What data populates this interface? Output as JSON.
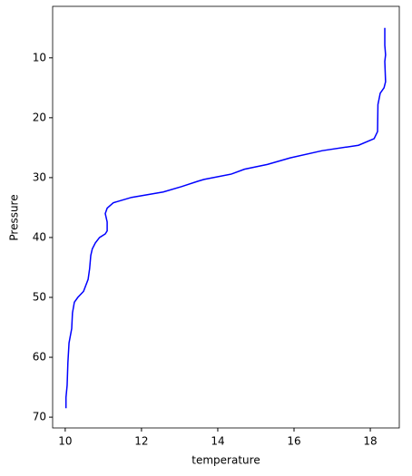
{
  "chart_data": {
    "type": "line",
    "x_label": "temperature",
    "y_label": "Pressure",
    "y_inverted": true,
    "color": "#0000ff",
    "x": [
      18.38,
      18.38,
      18.4,
      18.38,
      18.4,
      18.36,
      18.26,
      18.2,
      18.19,
      18.1,
      17.69,
      16.74,
      15.9,
      15.3,
      14.7,
      14.36,
      13.64,
      13.48,
      13.05,
      12.57,
      11.74,
      11.26,
      11.1,
      11.05,
      11.1,
      11.1,
      11.05,
      10.9,
      10.79,
      10.71,
      10.67,
      10.64,
      10.6,
      10.48,
      10.33,
      10.24,
      10.19,
      10.17,
      10.1,
      10.07,
      10.05,
      10.02,
      10.02
    ],
    "values": [
      5,
      7.9,
      9.5,
      10.6,
      14,
      15,
      15.9,
      17.8,
      22.3,
      23.5,
      24.6,
      25.5,
      26.7,
      27.8,
      28.6,
      29.4,
      30.3,
      30.6,
      31.5,
      32.4,
      33.3,
      34.2,
      35.1,
      36,
      37.4,
      38.9,
      39.4,
      40,
      40.9,
      41.9,
      43,
      45.2,
      47,
      49,
      50,
      50.8,
      52.6,
      55.2,
      57.6,
      60.9,
      64.7,
      66.7,
      68.5
    ],
    "xlim": [
      9.67,
      18.76
    ],
    "xticks": [
      10,
      12,
      14,
      16,
      18
    ],
    "ylim": [
      1.4,
      71.8
    ],
    "yticks": [
      10,
      20,
      30,
      40,
      50,
      60,
      70
    ]
  }
}
